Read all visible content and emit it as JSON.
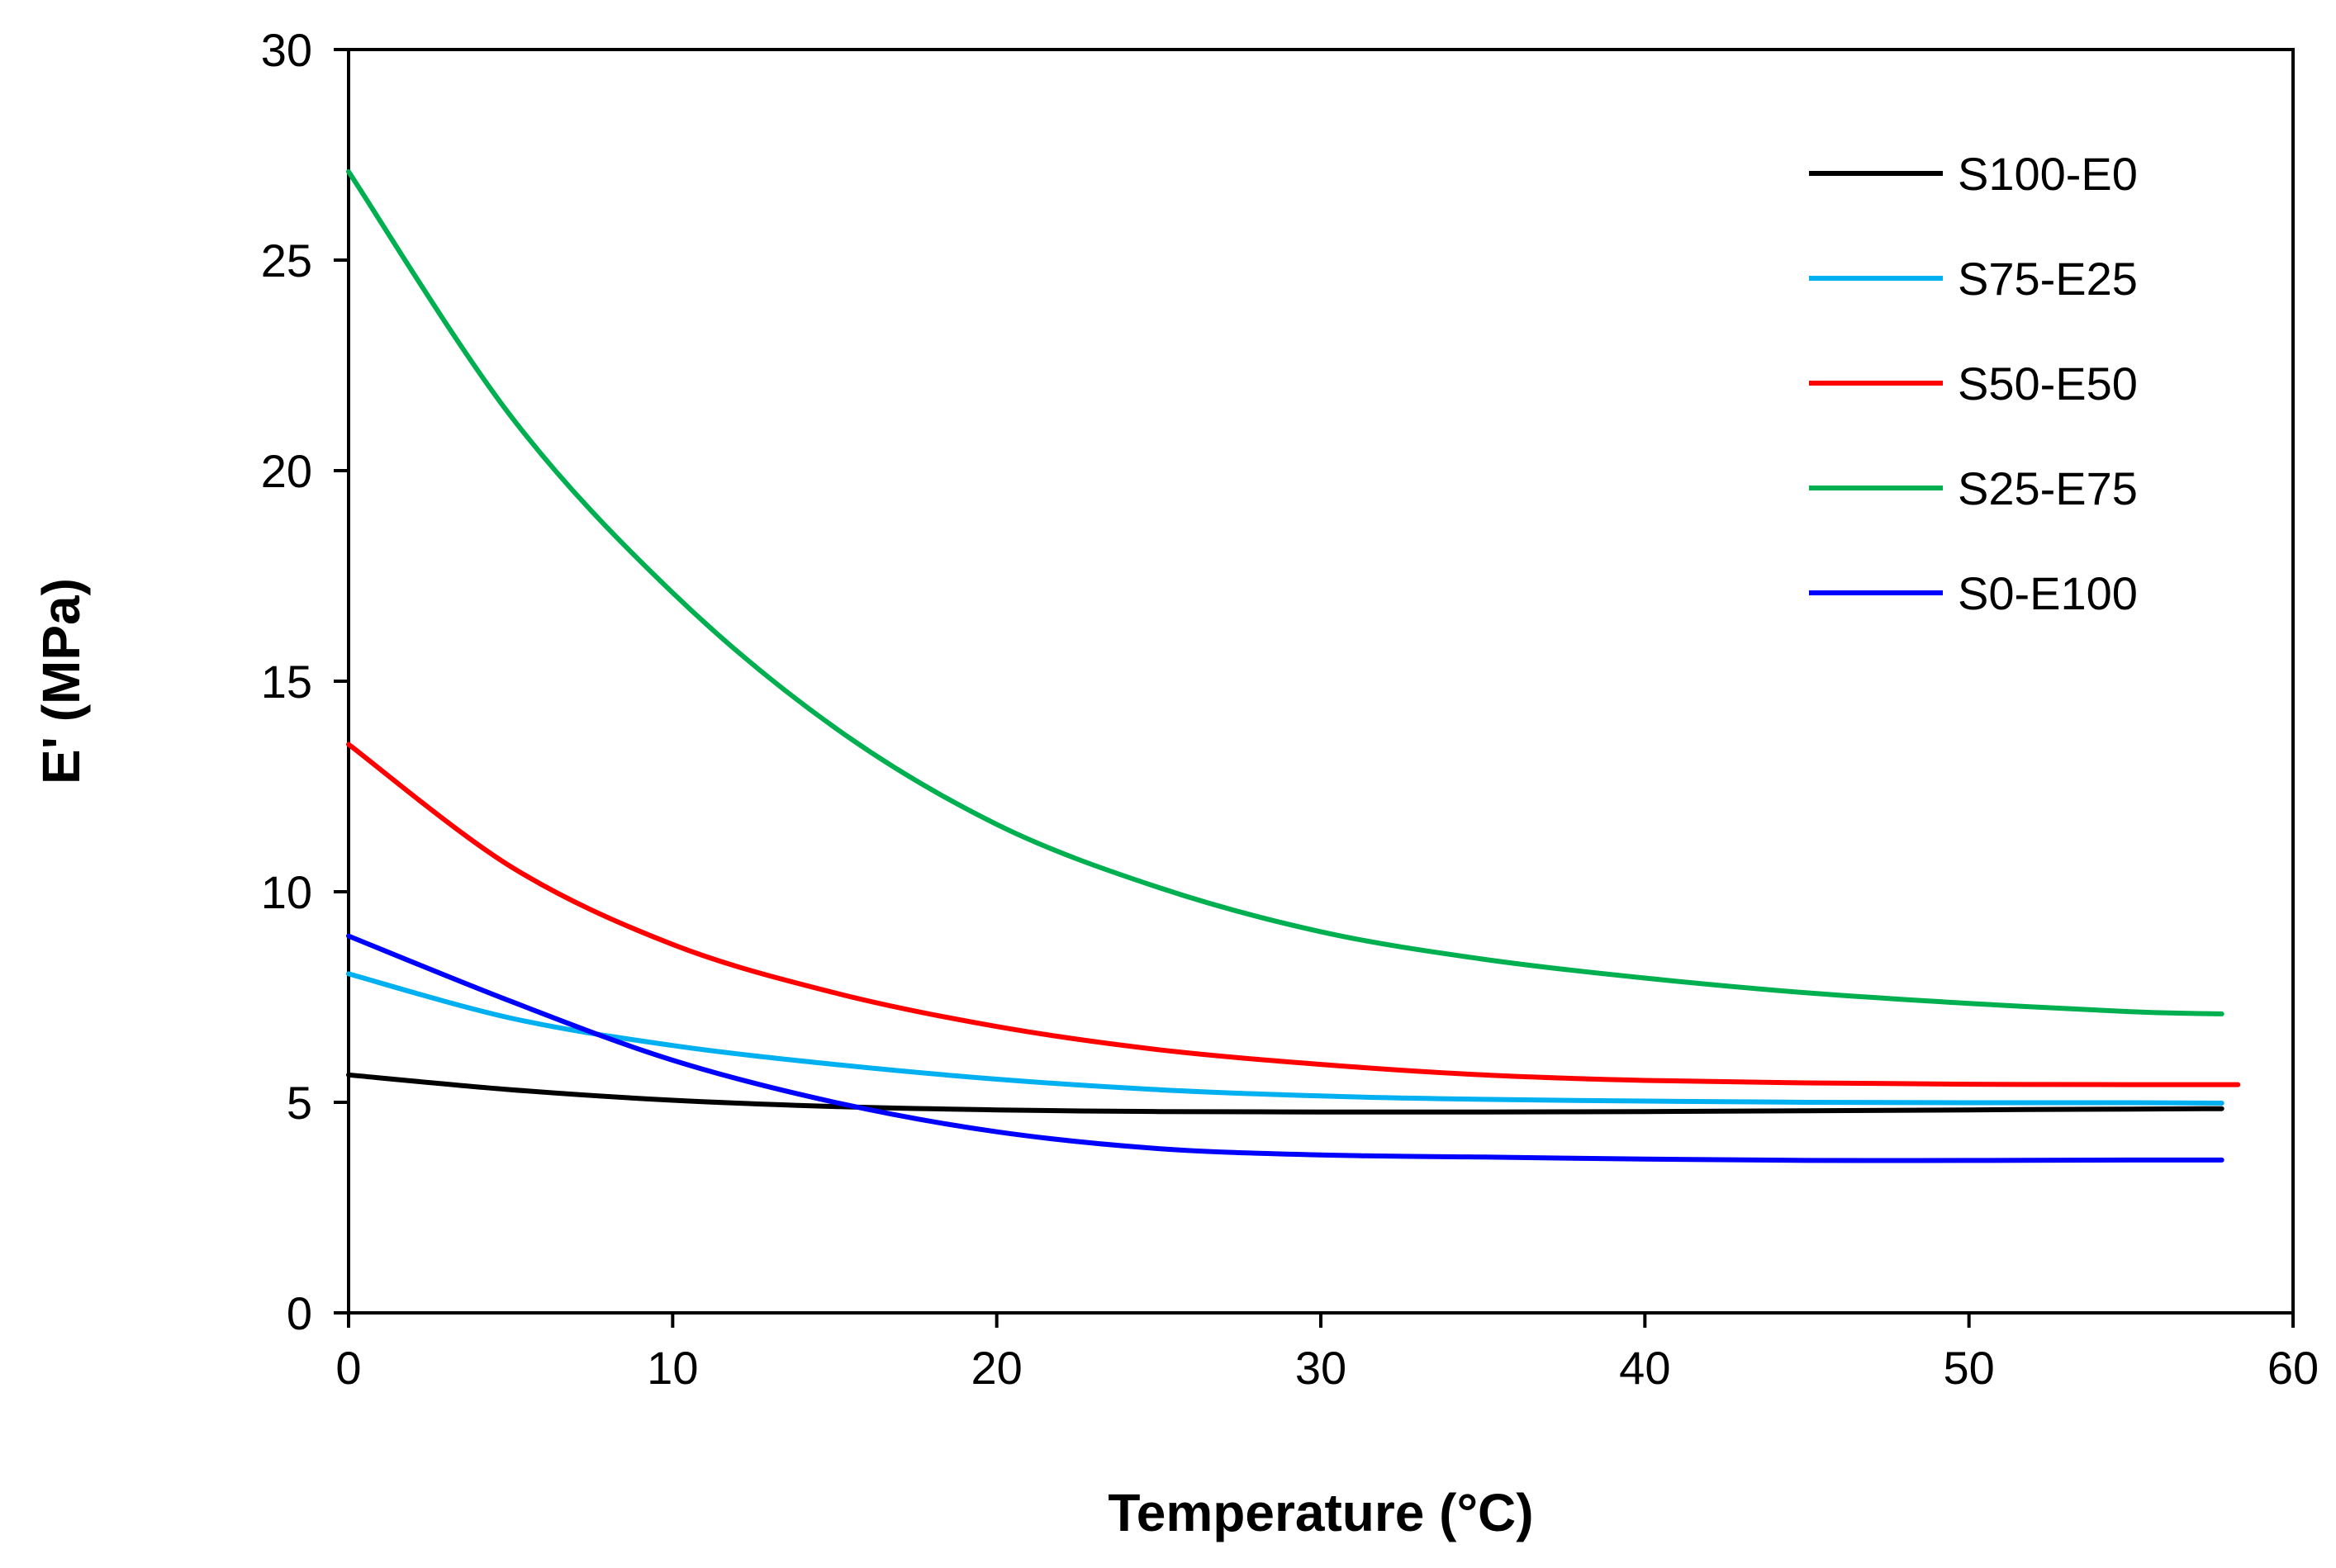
{
  "chart_data": {
    "type": "line",
    "title": "",
    "xlabel": "Temperature (°C)",
    "ylabel": "E' (MPa)",
    "xlim": [
      0,
      60
    ],
    "ylim": [
      0,
      30
    ],
    "xticks": [
      0,
      10,
      20,
      30,
      40,
      50,
      60
    ],
    "yticks": [
      0,
      5,
      10,
      15,
      20,
      25,
      30
    ],
    "xtick_labels": [
      "0",
      "10",
      "20",
      "30",
      "40",
      "50",
      "60"
    ],
    "ytick_labels": [
      "0",
      "5",
      "10",
      "15",
      "20",
      "25",
      "30"
    ],
    "grid": false,
    "legend_position": "top-right",
    "series": [
      {
        "name": "S100-E0",
        "color": "#000000",
        "x": [
          0,
          5,
          10,
          15,
          20,
          25,
          30,
          35,
          40,
          45,
          50,
          55,
          57.8
        ],
        "y": [
          5.65,
          5.3,
          5.05,
          4.9,
          4.82,
          4.78,
          4.77,
          4.77,
          4.78,
          4.8,
          4.82,
          4.84,
          4.85
        ]
      },
      {
        "name": "S75-E25",
        "color": "#00b0f0",
        "x": [
          0,
          5,
          10,
          15,
          20,
          25,
          30,
          35,
          40,
          45,
          50,
          55,
          57.8
        ],
        "y": [
          8.05,
          7.0,
          6.35,
          5.9,
          5.55,
          5.3,
          5.15,
          5.07,
          5.03,
          5.0,
          4.99,
          4.99,
          4.98
        ]
      },
      {
        "name": "S50-E50",
        "color": "#ff0000",
        "x": [
          0,
          5,
          10,
          15,
          20,
          25,
          30,
          35,
          40,
          45,
          50,
          55,
          58.3
        ],
        "y": [
          13.5,
          10.6,
          8.75,
          7.6,
          6.8,
          6.25,
          5.9,
          5.65,
          5.52,
          5.46,
          5.43,
          5.42,
          5.42
        ]
      },
      {
        "name": "S25-E75",
        "color": "#00b050",
        "x": [
          0,
          5,
          10,
          15,
          20,
          25,
          30,
          35,
          40,
          45,
          50,
          55,
          57.8
        ],
        "y": [
          27.1,
          21.3,
          17.1,
          13.9,
          11.6,
          10.1,
          9.05,
          8.4,
          7.95,
          7.6,
          7.35,
          7.15,
          7.1
        ]
      },
      {
        "name": "S0-E100",
        "color": "#0000ff",
        "x": [
          0,
          5,
          10,
          15,
          20,
          25,
          30,
          35,
          40,
          45,
          50,
          55,
          57.8
        ],
        "y": [
          8.95,
          7.4,
          6.0,
          5.0,
          4.3,
          3.9,
          3.75,
          3.7,
          3.65,
          3.62,
          3.62,
          3.63,
          3.63
        ]
      }
    ]
  }
}
